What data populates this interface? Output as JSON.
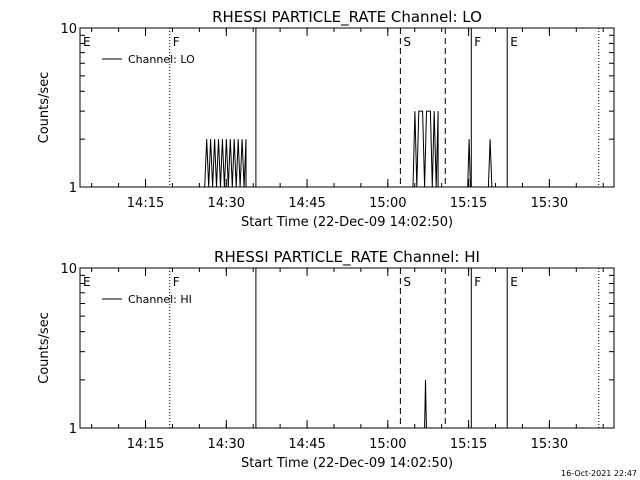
{
  "chart_data": [
    {
      "type": "line",
      "title": "RHESSI PARTICLE_RATE Channel: LO",
      "xlabel": "Start Time (22-Dec-09 14:02:50)",
      "ylabel": "Counts/sec",
      "y_scale": "log",
      "ylim": [
        1,
        10
      ],
      "y_ticks": [
        "1",
        "10"
      ],
      "xlim_minutes": [
        "14:02:50",
        "15:42:00"
      ],
      "x_ticks": [
        "14:15",
        "14:30",
        "14:45",
        "15:00",
        "15:15",
        "15:30"
      ],
      "x_tick_times": [
        "14:15",
        "14:30",
        "14:45",
        "15:00",
        "15:15",
        "15:30"
      ],
      "legend": "Channel: LO",
      "legend_position": "top-left",
      "markers": [
        {
          "label": "E",
          "time": "14:02:50",
          "style": "none"
        },
        {
          "label": "F",
          "time": "14:19:30",
          "style": "dotted"
        },
        {
          "label": "",
          "time": "14:35:30",
          "style": "solid"
        },
        {
          "label": "S",
          "time": "15:02:20",
          "style": "dashed"
        },
        {
          "label": "",
          "time": "15:10:40",
          "style": "dashed"
        },
        {
          "label": "F",
          "time": "15:15:30",
          "style": "solid"
        },
        {
          "label": "E",
          "time": "15:22:10",
          "style": "solid"
        },
        {
          "label": "",
          "time": "15:39:10",
          "style": "dotted"
        }
      ],
      "series": [
        {
          "name": "Channel: LO",
          "bursts": [
            {
              "start": "14:26:00",
              "end": "14:33:40",
              "max": 2
            },
            {
              "start": "15:04:40",
              "end": "15:09:20",
              "max": 3
            },
            {
              "start": "15:14:50",
              "end": "15:15:20",
              "max": 2
            },
            {
              "start": "15:18:40",
              "end": "15:19:20",
              "max": 2
            }
          ]
        }
      ]
    },
    {
      "type": "line",
      "title": "RHESSI PARTICLE_RATE Channel: HI",
      "xlabel": "Start Time (22-Dec-09 14:02:50)",
      "ylabel": "Counts/sec",
      "y_scale": "log",
      "ylim": [
        1,
        10
      ],
      "y_ticks": [
        "1",
        "10"
      ],
      "x_ticks": [
        "14:15",
        "14:30",
        "14:45",
        "15:00",
        "15:15",
        "15:30"
      ],
      "legend": "Channel: HI",
      "legend_position": "top-left",
      "markers": [
        {
          "label": "E",
          "time": "14:02:50",
          "style": "none"
        },
        {
          "label": "F",
          "time": "14:19:30",
          "style": "dotted"
        },
        {
          "label": "",
          "time": "14:35:30",
          "style": "solid"
        },
        {
          "label": "S",
          "time": "15:02:20",
          "style": "dashed"
        },
        {
          "label": "",
          "time": "15:10:40",
          "style": "dashed"
        },
        {
          "label": "F",
          "time": "15:15:30",
          "style": "solid"
        },
        {
          "label": "E",
          "time": "15:22:10",
          "style": "solid"
        },
        {
          "label": "",
          "time": "15:39:10",
          "style": "dotted"
        }
      ],
      "series": [
        {
          "name": "Channel: HI",
          "bursts": [
            {
              "start": "15:06:50",
              "end": "15:07:10",
              "max": 2
            }
          ]
        }
      ]
    }
  ],
  "timestamp": "16-Oct-2021 22:47"
}
